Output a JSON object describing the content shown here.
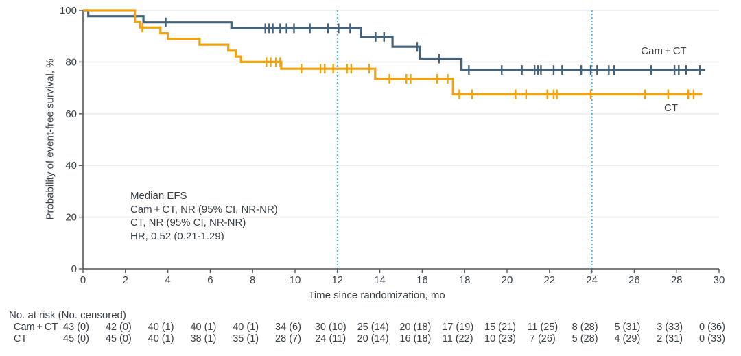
{
  "chart_data": {
    "type": "line",
    "subtype": "kaplan-meier-step-curves",
    "title": "",
    "xlabel": "Time since randomization, mo",
    "ylabel": "Probability of event-free survival, %",
    "xlim": [
      0,
      30
    ],
    "ylim": [
      0,
      100
    ],
    "x_ticks": [
      0,
      2,
      4,
      6,
      8,
      10,
      12,
      14,
      16,
      18,
      20,
      22,
      24,
      26,
      28,
      30
    ],
    "y_ticks": [
      0,
      20,
      40,
      60,
      80,
      100
    ],
    "grid": "horizontal",
    "reference_lines_x": [
      12,
      24
    ],
    "colors": {
      "grid": "#ececec",
      "axis": "#54585c",
      "reference": "#41b5e3",
      "text": "#3a4147"
    },
    "annotation": [
      "Median EFS",
      "Cam + CT, NR (95% CI, NR-NR)",
      "CT, NR (95% CI, NR-NR)",
      "HR, 0.52 (0.21-1.29)"
    ],
    "series": [
      {
        "id": "cam-ct",
        "name": "Cam + CT",
        "color": "#44627a",
        "steps": [
          [
            0,
            100
          ],
          [
            0.25,
            100
          ],
          [
            0.25,
            97.7
          ],
          [
            2.85,
            97.7
          ],
          [
            2.85,
            95.3
          ],
          [
            7.0,
            95.3
          ],
          [
            7.0,
            93.0
          ],
          [
            13.1,
            93.0
          ],
          [
            13.1,
            89.7
          ],
          [
            14.6,
            89.7
          ],
          [
            14.6,
            85.9
          ],
          [
            15.9,
            85.9
          ],
          [
            15.9,
            81.3
          ],
          [
            17.85,
            81.3
          ],
          [
            17.85,
            76.9
          ],
          [
            29.35,
            76.9
          ]
        ],
        "censors": [
          [
            3.9,
            95.3
          ],
          [
            8.6,
            93.0
          ],
          [
            8.78,
            93.0
          ],
          [
            8.95,
            93.0
          ],
          [
            9.3,
            93.0
          ],
          [
            9.6,
            93.0
          ],
          [
            9.95,
            93.0
          ],
          [
            10.7,
            93.0
          ],
          [
            11.55,
            93.0
          ],
          [
            12.05,
            93.0
          ],
          [
            12.6,
            93.0
          ],
          [
            13.8,
            89.7
          ],
          [
            14.2,
            89.7
          ],
          [
            15.76,
            85.9
          ],
          [
            16.8,
            81.3
          ],
          [
            18.2,
            76.9
          ],
          [
            19.75,
            76.9
          ],
          [
            20.7,
            76.9
          ],
          [
            21.3,
            76.9
          ],
          [
            21.45,
            76.9
          ],
          [
            21.6,
            76.9
          ],
          [
            22.2,
            76.9
          ],
          [
            22.6,
            76.9
          ],
          [
            23.5,
            76.9
          ],
          [
            23.95,
            76.9
          ],
          [
            24.25,
            76.9
          ],
          [
            24.8,
            76.9
          ],
          [
            25.05,
            76.9
          ],
          [
            26.8,
            76.9
          ],
          [
            27.9,
            76.9
          ],
          [
            28.1,
            76.9
          ],
          [
            28.45,
            76.9
          ],
          [
            29.1,
            76.9
          ]
        ]
      },
      {
        "id": "ct",
        "name": "CT",
        "color": "#f2a20d",
        "steps": [
          [
            0,
            100
          ],
          [
            2.45,
            100
          ],
          [
            2.45,
            95.6
          ],
          [
            2.7,
            95.6
          ],
          [
            2.7,
            93.3
          ],
          [
            3.65,
            93.3
          ],
          [
            3.65,
            91.1
          ],
          [
            4.0,
            91.1
          ],
          [
            4.0,
            88.9
          ],
          [
            5.5,
            88.9
          ],
          [
            5.5,
            86.7
          ],
          [
            6.85,
            86.7
          ],
          [
            6.85,
            84.4
          ],
          [
            7.2,
            84.4
          ],
          [
            7.2,
            82.2
          ],
          [
            7.45,
            82.2
          ],
          [
            7.45,
            80.0
          ],
          [
            9.35,
            80.0
          ],
          [
            9.35,
            77.4
          ],
          [
            13.78,
            77.4
          ],
          [
            13.78,
            73.5
          ],
          [
            17.45,
            73.5
          ],
          [
            17.45,
            67.5
          ],
          [
            29.2,
            67.5
          ]
        ],
        "censors": [
          [
            2.8,
            93.3
          ],
          [
            8.65,
            80.0
          ],
          [
            8.85,
            80.0
          ],
          [
            9.1,
            80.0
          ],
          [
            9.3,
            80.0
          ],
          [
            10.3,
            77.4
          ],
          [
            11.2,
            77.4
          ],
          [
            11.4,
            77.4
          ],
          [
            11.8,
            77.4
          ],
          [
            12.45,
            77.4
          ],
          [
            12.65,
            77.4
          ],
          [
            13.5,
            77.4
          ],
          [
            14.45,
            73.5
          ],
          [
            15.25,
            73.5
          ],
          [
            15.45,
            73.5
          ],
          [
            16.7,
            73.5
          ],
          [
            17.2,
            73.5
          ],
          [
            17.75,
            67.5
          ],
          [
            18.35,
            67.5
          ],
          [
            20.4,
            67.5
          ],
          [
            20.9,
            67.5
          ],
          [
            21.9,
            67.5
          ],
          [
            22.2,
            67.5
          ],
          [
            22.35,
            67.5
          ],
          [
            23.95,
            67.5
          ],
          [
            26.5,
            67.5
          ],
          [
            27.6,
            67.5
          ],
          [
            28.55,
            67.5
          ],
          [
            28.8,
            67.5
          ]
        ]
      }
    ]
  },
  "risk_table": {
    "header": "No. at risk (No. censored)",
    "time_points": [
      0,
      2,
      4,
      6,
      8,
      10,
      12,
      14,
      16,
      18,
      20,
      22,
      24,
      26,
      28,
      30
    ],
    "rows": [
      {
        "label": "Cam + CT",
        "values": [
          "43 (0)",
          "42 (0)",
          "40 (1)",
          "40 (1)",
          "40 (1)",
          "34 (6)",
          "30 (10)",
          "25 (14)",
          "20 (18)",
          "17 (19)",
          "15 (21)",
          "11 (25)",
          "8 (28)",
          "5 (31)",
          "3 (33)",
          "0 (36)"
        ]
      },
      {
        "label": "CT",
        "values": [
          "45 (0)",
          "45 (0)",
          "40 (1)",
          "38 (1)",
          "35 (1)",
          "28 (7)",
          "24 (11)",
          "20 (14)",
          "16 (18)",
          "11 (22)",
          "10 (23)",
          "7 (26)",
          "5 (28)",
          "4 (29)",
          "2 (31)",
          "0 (33)"
        ]
      }
    ]
  }
}
